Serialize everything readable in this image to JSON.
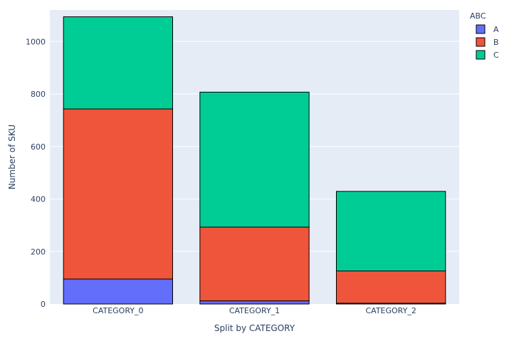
{
  "chart_data": {
    "type": "bar",
    "barmode": "stack",
    "title": "",
    "xlabel": "Split by CATEGORY",
    "ylabel": "Number of SKU",
    "categories": [
      "CATEGORY_0",
      "CATEGORY_1",
      "CATEGORY_2"
    ],
    "ylim": [
      0,
      1120
    ],
    "yticks": [
      0,
      200,
      400,
      600,
      800,
      1000
    ],
    "grid": true,
    "legend": {
      "title": "ABC",
      "position": "top-right"
    },
    "series": [
      {
        "name": "A",
        "color": "#636efa",
        "values": [
          95,
          12,
          3
        ]
      },
      {
        "name": "B",
        "color": "#ef553b",
        "values": [
          648,
          281,
          123
        ]
      },
      {
        "name": "C",
        "color": "#00cc96",
        "values": [
          351,
          514,
          303
        ]
      }
    ],
    "plot_background": "#e5ecf6"
  }
}
